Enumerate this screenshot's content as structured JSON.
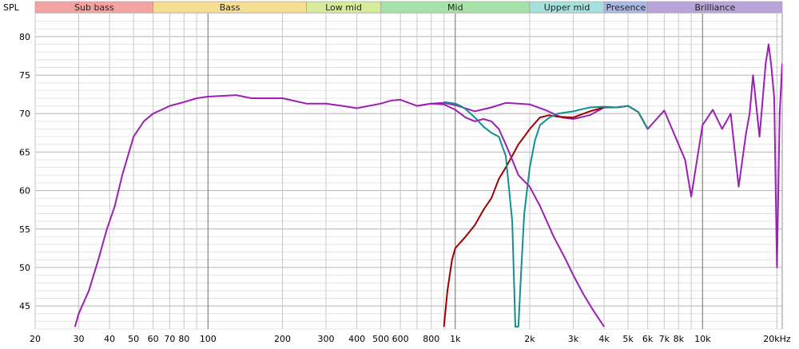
{
  "chart_data": {
    "type": "line",
    "ylabel": "SPL",
    "x_scale": "log",
    "xlim": [
      20,
      21000
    ],
    "ylim": [
      42,
      83
    ],
    "grid": true,
    "x_tick_values": [
      20,
      30,
      40,
      50,
      60,
      70,
      80,
      100,
      200,
      300,
      400,
      500,
      600,
      800,
      1000,
      2000,
      3000,
      4000,
      5000,
      6000,
      7000,
      8000,
      10000,
      20000
    ],
    "x_tick_labels": [
      "20",
      "30",
      "40",
      "50",
      "60",
      "70",
      "80",
      "100",
      "200",
      "300",
      "400",
      "500",
      "600",
      "800",
      "1k",
      "2k",
      "3k",
      "4k",
      "5k",
      "6k",
      "7k",
      "8k",
      "10k",
      "20kHz"
    ],
    "y_tick_values": [
      45,
      50,
      55,
      60,
      65,
      70,
      75,
      80
    ],
    "y_tick_labels": [
      "45",
      "50",
      "55",
      "60",
      "65",
      "70",
      "75",
      "80"
    ],
    "bands": [
      {
        "label": "Sub bass",
        "from": 20,
        "to": 60,
        "color": "#f4a3a3"
      },
      {
        "label": "Bass",
        "from": 60,
        "to": 250,
        "color": "#f7dc94"
      },
      {
        "label": "Low mid",
        "from": 250,
        "to": 500,
        "color": "#d6ec9c"
      },
      {
        "label": "Mid",
        "from": 500,
        "to": 2000,
        "color": "#a8e2a8"
      },
      {
        "label": "Upper mid",
        "from": 2000,
        "to": 4000,
        "color": "#a6e0dc"
      },
      {
        "label": "Presence",
        "from": 4000,
        "to": 6000,
        "color": "#aab8e6"
      },
      {
        "label": "Brilliance",
        "from": 6000,
        "to": 21000,
        "color": "#b8a4d6"
      }
    ],
    "series": [
      {
        "color": "#9b1fb2",
        "x": [
          29,
          30,
          33,
          36,
          39,
          42,
          45,
          50,
          55,
          60,
          65,
          70,
          80,
          90,
          100,
          130,
          150,
          200,
          250,
          300,
          350,
          400,
          500,
          550,
          600,
          700,
          800,
          900,
          1000,
          1200,
          1400,
          1600,
          1800,
          2000,
          2300,
          2700,
          3000,
          3500,
          4000,
          4500,
          5000,
          5500,
          6000,
          7000,
          8000,
          8500,
          9000,
          9500,
          10000,
          11000,
          12000,
          13000,
          14000,
          15000,
          15500,
          16000,
          17000,
          18000,
          18500,
          19000,
          19500,
          20000,
          20500,
          21000
        ],
        "y": [
          42.3,
          44,
          47,
          51,
          55,
          58,
          62,
          67,
          69,
          70,
          70.5,
          71,
          71.5,
          72,
          72.2,
          72.4,
          72,
          72,
          71.3,
          71.3,
          71,
          70.7,
          71.3,
          71.7,
          71.8,
          71,
          71.3,
          71.4,
          71.1,
          70.3,
          70.8,
          71.4,
          71.3,
          71.2,
          70.5,
          69.5,
          69.3,
          69.8,
          70.8,
          70.8,
          71,
          70.2,
          68,
          70.4,
          66,
          64,
          59.2,
          64,
          68.5,
          70.5,
          68,
          70,
          60.5,
          67.5,
          70,
          75,
          67,
          76.5,
          79,
          76,
          72,
          50,
          70,
          76.5
        ]
      },
      {
        "color": "#a00000",
        "x": [
          900,
          930,
          970,
          1000,
          1100,
          1200,
          1300,
          1400,
          1500,
          1600,
          1700,
          1800,
          1900,
          2000,
          2200,
          2400,
          2600,
          3000,
          3500,
          4000,
          4500,
          5000,
          5500,
          6000
        ],
        "y": [
          42.3,
          47,
          51,
          52.5,
          54,
          55.5,
          57.5,
          59,
          61.5,
          63,
          64.5,
          66,
          67,
          68,
          69.5,
          69.8,
          69.6,
          69.5,
          70.3,
          70.8,
          70.8,
          71,
          70.2,
          68
        ]
      },
      {
        "color": "#138f8f",
        "x": [
          900,
          950,
          1000,
          1050,
          1100,
          1200,
          1300,
          1400,
          1500,
          1600,
          1700,
          1750,
          1800,
          1850,
          1900,
          2000,
          2100,
          2200,
          2400,
          2600,
          3000,
          3500,
          4000,
          4500,
          5000,
          5500,
          6000
        ],
        "y": [
          71.5,
          71.4,
          71.3,
          71,
          70.6,
          69.5,
          68.3,
          67.5,
          67,
          64.5,
          56,
          42.3,
          42.3,
          50,
          57,
          63,
          66.5,
          68.5,
          69.5,
          70,
          70.3,
          70.8,
          70.9,
          70.8,
          71,
          70.2,
          68
        ]
      },
      {
        "color": "#9b1fb2",
        "x": [
          700,
          800,
          900,
          1000,
          1100,
          1200,
          1300,
          1400,
          1500,
          1600,
          1700,
          1800,
          2000,
          2200,
          2500,
          2800,
          3000,
          3300,
          3600,
          4000
        ],
        "y": [
          71,
          71.3,
          71.2,
          70.5,
          69.5,
          69,
          69.3,
          69,
          68,
          66,
          64,
          62,
          60.5,
          58,
          54,
          51,
          49,
          46.5,
          44.5,
          42.3
        ]
      }
    ]
  }
}
